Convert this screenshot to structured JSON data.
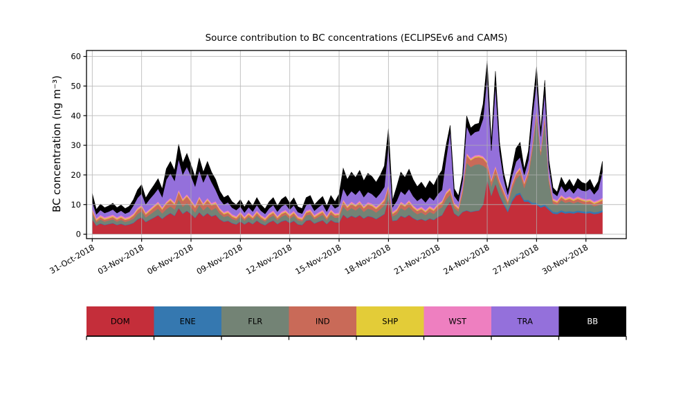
{
  "figure": {
    "title": "Source contribution to BC concentrations (ECLIPSEv6 and CAMS)",
    "ylabel": "BC concentration (ng m⁻³)"
  },
  "chart_data": {
    "type": "area",
    "stacked": true,
    "title": "Source contribution to BC concentrations (ECLIPSEv6 and CAMS)",
    "xlabel": "",
    "ylabel": "BC concentration (ng m⁻³)",
    "grid": true,
    "legend_position": "bottom-bar",
    "ylim": [
      -1.5,
      62
    ],
    "yticks": [
      0,
      10,
      20,
      30,
      40,
      50,
      60
    ],
    "x_start_label": "31-Oct-2018",
    "x_step_hours": 6,
    "xlim_days": [
      -0.35,
      32.45
    ],
    "xtick_day_offsets": [
      0,
      3,
      6,
      9,
      12,
      15,
      18,
      21,
      24,
      27,
      30
    ],
    "xtick_labels": [
      "31-Oct-2018",
      "03-Nov-2018",
      "06-Nov-2018",
      "09-Nov-2018",
      "12-Nov-2018",
      "15-Nov-2018",
      "18-Nov-2018",
      "21-Nov-2018",
      "24-Nov-2018",
      "27-Nov-2018",
      "30-Nov-2018"
    ],
    "series": [
      {
        "name": "DOM",
        "color": "#c42e3a",
        "values": [
          5.0,
          2.9,
          3.6,
          3.1,
          3.4,
          3.7,
          3.1,
          3.5,
          3.0,
          3.3,
          3.8,
          5.0,
          5.7,
          4.1,
          4.9,
          5.6,
          6.4,
          5.2,
          6.3,
          7.1,
          6.2,
          8.8,
          6.9,
          7.9,
          6.8,
          5.5,
          7.4,
          6.0,
          7.1,
          6.0,
          6.5,
          5.0,
          4.2,
          4.5,
          3.7,
          3.3,
          4.3,
          3.3,
          4.2,
          3.4,
          4.6,
          3.6,
          3.0,
          4.0,
          4.6,
          3.4,
          4.3,
          4.7,
          3.8,
          4.5,
          3.3,
          3.1,
          4.6,
          4.8,
          3.6,
          4.2,
          4.7,
          3.4,
          4.8,
          4.0,
          3.9,
          6.6,
          5.4,
          6.2,
          5.6,
          6.4,
          5.3,
          6.1,
          5.8,
          5.1,
          5.9,
          6.8,
          12.0,
          4.5,
          4.7,
          6.2,
          5.6,
          6.5,
          5.4,
          4.7,
          5.1,
          4.5,
          5.3,
          4.8,
          5.8,
          6.4,
          9.0,
          11.0,
          7.0,
          6.0,
          7.5,
          8.0,
          7.5,
          7.8,
          8.0,
          10.0,
          18.5,
          13.0,
          17.0,
          13.0,
          10.0,
          7.5,
          11.0,
          13.0,
          13.5,
          11.0,
          11.0,
          10.0,
          10.0,
          9.0,
          9.5,
          8.2,
          7.0,
          6.8,
          7.5,
          7.0,
          7.2,
          7.0,
          7.4,
          7.2,
          7.0,
          7.2,
          6.8,
          7.0,
          7.5
        ]
      },
      {
        "name": "ENE",
        "color": "#3578b0",
        "values": [
          0.15,
          0.15,
          0.15,
          0.15,
          0.15,
          0.15,
          0.15,
          0.15,
          0.15,
          0.15,
          0.15,
          0.15,
          0.15,
          0.15,
          0.15,
          0.15,
          0.15,
          0.15,
          0.15,
          0.15,
          0.15,
          0.15,
          0.15,
          0.15,
          0.15,
          0.15,
          0.15,
          0.15,
          0.15,
          0.15,
          0.15,
          0.15,
          0.15,
          0.15,
          0.15,
          0.15,
          0.15,
          0.15,
          0.15,
          0.15,
          0.15,
          0.15,
          0.15,
          0.15,
          0.15,
          0.15,
          0.15,
          0.15,
          0.15,
          0.15,
          0.15,
          0.15,
          0.15,
          0.15,
          0.15,
          0.15,
          0.15,
          0.15,
          0.15,
          0.15,
          0.15,
          0.15,
          0.15,
          0.15,
          0.15,
          0.15,
          0.15,
          0.15,
          0.15,
          0.15,
          0.15,
          0.15,
          0.15,
          0.15,
          0.15,
          0.15,
          0.15,
          0.15,
          0.15,
          0.15,
          0.15,
          0.15,
          0.15,
          0.15,
          0.15,
          0.15,
          0.15,
          0.15,
          0.15,
          0.15,
          0.15,
          0.15,
          0.15,
          0.15,
          0.15,
          0.15,
          0.15,
          0.15,
          0.15,
          0.15,
          0.6,
          0.6,
          0.6,
          0.6,
          0.6,
          0.6,
          0.6,
          0.6,
          0.6,
          0.6,
          0.6,
          0.6,
          0.6,
          0.6,
          0.6,
          0.6,
          0.6,
          0.6,
          0.6,
          0.6,
          0.6,
          0.6,
          0.6,
          0.6,
          0.6
        ]
      },
      {
        "name": "FLR",
        "color": "#738375",
        "values": [
          1.7,
          1.0,
          1.2,
          1.0,
          1.1,
          1.2,
          1.0,
          1.2,
          1.0,
          1.1,
          1.3,
          1.7,
          1.9,
          1.4,
          1.6,
          1.9,
          2.1,
          1.7,
          2.0,
          2.2,
          2.0,
          2.8,
          2.2,
          2.5,
          2.1,
          1.7,
          2.4,
          1.9,
          2.2,
          1.9,
          2.3,
          1.8,
          1.5,
          1.6,
          1.3,
          1.2,
          1.5,
          1.1,
          1.5,
          1.2,
          1.6,
          1.3,
          1.1,
          1.4,
          1.6,
          1.2,
          1.5,
          1.7,
          1.3,
          1.6,
          1.2,
          1.1,
          1.6,
          1.7,
          1.3,
          1.5,
          1.7,
          1.2,
          1.7,
          1.4,
          1.6,
          2.7,
          2.2,
          2.5,
          2.3,
          2.6,
          2.1,
          2.4,
          2.3,
          2.1,
          2.4,
          2.8,
          2.3,
          1.4,
          1.9,
          2.5,
          2.3,
          2.6,
          2.2,
          1.9,
          2.1,
          1.8,
          2.1,
          1.9,
          2.3,
          2.6,
          2.6,
          2.2,
          1.7,
          1.5,
          6.0,
          16.0,
          15.0,
          15.5,
          15.5,
          13.0,
          3.4,
          3.0,
          3.2,
          3.0,
          2.5,
          1.8,
          3.5,
          5.0,
          6.0,
          4.0,
          8.0,
          18.0,
          29.5,
          17.0,
          28.0,
          8.8,
          2.8,
          2.4,
          3.4,
          3.0,
          3.2,
          2.8,
          3.0,
          2.6,
          2.4,
          2.4,
          2.0,
          2.2,
          2.2
        ]
      },
      {
        "name": "IND",
        "color": "#c96a58",
        "values": [
          1.1,
          0.6,
          0.8,
          0.7,
          0.7,
          0.8,
          0.7,
          0.8,
          0.7,
          0.7,
          1.0,
          1.3,
          1.4,
          1.0,
          1.2,
          1.4,
          1.6,
          1.3,
          1.8,
          2.0,
          1.7,
          2.5,
          2.0,
          2.2,
          1.9,
          1.6,
          2.1,
          1.7,
          2.0,
          1.7,
          1.4,
          1.1,
          0.9,
          1.0,
          0.8,
          0.7,
          0.9,
          0.7,
          0.8,
          0.7,
          0.9,
          0.7,
          0.6,
          0.8,
          0.9,
          0.7,
          0.9,
          0.9,
          0.8,
          0.9,
          0.7,
          0.6,
          0.9,
          1.0,
          0.7,
          0.8,
          0.9,
          0.7,
          1.0,
          0.8,
          0.9,
          1.5,
          1.2,
          1.4,
          1.3,
          1.4,
          1.2,
          1.4,
          1.3,
          1.2,
          1.3,
          1.5,
          1.6,
          0.8,
          1.1,
          1.4,
          1.3,
          1.5,
          1.2,
          1.1,
          1.2,
          1.0,
          1.2,
          1.1,
          1.3,
          1.4,
          1.8,
          1.6,
          1.0,
          0.9,
          1.3,
          2.5,
          2.3,
          2.4,
          2.4,
          2.4,
          1.9,
          1.7,
          2.0,
          1.5,
          1.2,
          1.0,
          1.3,
          1.6,
          1.8,
          1.4,
          1.4,
          1.5,
          1.6,
          1.2,
          1.5,
          1.2,
          0.9,
          0.9,
          1.0,
          0.9,
          1.0,
          0.9,
          1.0,
          1.0,
          1.0,
          1.0,
          0.9,
          1.0,
          1.2
        ]
      },
      {
        "name": "SHP",
        "color": "#e3cc38",
        "values": [
          0.3,
          0.3,
          0.3,
          0.3,
          0.3,
          0.3,
          0.3,
          0.3,
          0.3,
          0.3,
          0.3,
          0.3,
          0.3,
          0.3,
          0.3,
          0.3,
          0.3,
          0.3,
          0.3,
          0.3,
          0.3,
          0.3,
          0.3,
          0.3,
          0.3,
          0.3,
          0.3,
          0.3,
          0.3,
          0.3,
          0.3,
          0.3,
          0.3,
          0.3,
          0.3,
          0.3,
          0.3,
          0.3,
          0.3,
          0.3,
          0.3,
          0.3,
          0.3,
          0.3,
          0.3,
          0.3,
          0.3,
          0.3,
          0.3,
          0.3,
          0.3,
          0.3,
          0.3,
          0.3,
          0.3,
          0.3,
          0.3,
          0.3,
          0.3,
          0.3,
          0.3,
          0.3,
          0.3,
          0.3,
          0.3,
          0.3,
          0.3,
          0.3,
          0.3,
          0.3,
          0.3,
          0.3,
          0.3,
          0.3,
          0.3,
          0.3,
          0.3,
          0.3,
          0.3,
          0.3,
          0.3,
          0.3,
          0.3,
          0.3,
          0.3,
          0.3,
          0.3,
          0.3,
          0.3,
          0.3,
          0.3,
          0.3,
          0.3,
          0.3,
          0.3,
          0.3,
          0.3,
          0.3,
          0.3,
          0.3,
          0.3,
          0.3,
          0.3,
          0.3,
          0.3,
          0.3,
          0.3,
          0.3,
          0.3,
          0.3,
          0.3,
          0.3,
          0.3,
          0.3,
          0.3,
          0.3,
          0.3,
          0.3,
          0.3,
          0.3,
          0.3,
          0.3,
          0.3,
          0.3,
          0.3
        ]
      },
      {
        "name": "WST",
        "color": "#ee7fc0",
        "values": [
          0.5,
          0.5,
          0.5,
          0.5,
          0.5,
          0.5,
          0.5,
          0.5,
          0.5,
          0.5,
          0.5,
          0.5,
          0.5,
          0.5,
          0.5,
          0.5,
          0.5,
          0.5,
          0.5,
          0.5,
          0.5,
          0.5,
          0.5,
          0.5,
          0.5,
          0.5,
          0.5,
          0.5,
          0.5,
          0.5,
          0.5,
          0.5,
          0.5,
          0.5,
          0.5,
          0.5,
          0.5,
          0.5,
          0.5,
          0.5,
          0.5,
          0.5,
          0.5,
          0.5,
          0.5,
          0.5,
          0.5,
          0.5,
          0.5,
          0.5,
          0.5,
          0.5,
          0.5,
          0.5,
          0.5,
          0.5,
          0.5,
          0.5,
          0.5,
          0.5,
          0.5,
          0.5,
          0.5,
          0.5,
          0.5,
          0.5,
          0.5,
          0.5,
          0.5,
          0.5,
          0.5,
          0.5,
          0.5,
          0.5,
          0.5,
          0.5,
          0.5,
          0.5,
          0.5,
          0.5,
          0.5,
          0.5,
          0.5,
          0.5,
          0.5,
          0.5,
          0.5,
          0.5,
          0.5,
          0.5,
          0.5,
          0.5,
          0.5,
          0.5,
          0.5,
          0.5,
          0.5,
          0.5,
          0.5,
          0.5,
          0.5,
          0.5,
          0.5,
          0.5,
          0.5,
          0.5,
          0.5,
          0.5,
          0.5,
          0.5,
          0.5,
          0.5,
          0.5,
          0.5,
          0.5,
          0.5,
          0.5,
          0.5,
          0.5,
          0.5,
          0.5,
          0.5,
          0.5,
          0.5,
          0.5
        ]
      },
      {
        "name": "TRA",
        "color": "#9470db",
        "values": [
          2.2,
          1.3,
          1.6,
          1.4,
          1.5,
          1.7,
          1.4,
          1.5,
          1.3,
          1.5,
          2.6,
          3.3,
          3.8,
          2.7,
          3.3,
          3.7,
          4.3,
          3.4,
          7.4,
          8.3,
          7.2,
          10.3,
          8.1,
          9.2,
          7.9,
          6.4,
          8.7,
          7.0,
          8.3,
          7.0,
          3.8,
          3.0,
          2.5,
          2.7,
          2.2,
          2.0,
          1.7,
          1.3,
          1.7,
          1.4,
          1.8,
          1.4,
          1.2,
          1.6,
          1.8,
          1.4,
          1.7,
          1.9,
          1.5,
          1.8,
          1.3,
          1.2,
          1.8,
          1.9,
          1.4,
          1.7,
          1.9,
          1.4,
          1.9,
          1.6,
          2.2,
          3.7,
          3.1,
          3.5,
          3.2,
          3.6,
          3.0,
          3.4,
          3.2,
          2.9,
          3.3,
          3.9,
          13.5,
          1.5,
          2.6,
          3.5,
          3.2,
          3.7,
          3.1,
          2.6,
          2.9,
          2.5,
          3.0,
          2.7,
          3.2,
          3.6,
          11.0,
          19.0,
          2.3,
          1.7,
          2.4,
          9.0,
          7.5,
          7.8,
          8.0,
          12.6,
          29.0,
          9.5,
          27.3,
          9.6,
          3.7,
          1.6,
          2.3,
          3.5,
          3.3,
          2.2,
          3.2,
          8.6,
          9.5,
          4.4,
          7.6,
          3.4,
          1.9,
          1.4,
          3.1,
          1.9,
          2.7,
          1.7,
          2.9,
          2.6,
          2.7,
          3.4,
          2.4,
          3.6,
          8.7
        ]
      },
      {
        "name": "BB",
        "color": "#000000",
        "values": [
          2.8,
          1.6,
          2.0,
          1.8,
          1.9,
          2.1,
          1.8,
          1.9,
          1.7,
          1.9,
          2.0,
          2.7,
          3.0,
          2.1,
          2.6,
          3.0,
          3.4,
          2.7,
          3.6,
          4.0,
          3.5,
          5.0,
          3.9,
          4.5,
          3.8,
          3.1,
          4.2,
          3.4,
          4.0,
          3.4,
          3.5,
          2.7,
          2.3,
          2.4,
          2.0,
          1.8,
          2.3,
          1.8,
          2.3,
          1.9,
          2.5,
          2.0,
          1.7,
          2.2,
          2.5,
          1.9,
          2.4,
          2.6,
          2.1,
          2.5,
          1.8,
          1.7,
          2.5,
          2.7,
          2.0,
          2.3,
          2.6,
          1.9,
          2.7,
          2.2,
          4.0,
          6.8,
          5.6,
          6.4,
          5.8,
          6.6,
          5.5,
          6.3,
          5.9,
          5.3,
          6.1,
          7.1,
          5.3,
          2.3,
          4.8,
          6.4,
          5.8,
          6.7,
          5.6,
          4.8,
          5.3,
          4.7,
          5.5,
          5.0,
          5.9,
          6.6,
          4.6,
          2.0,
          2.4,
          1.9,
          1.8,
          3.5,
          2.6,
          2.6,
          2.6,
          5.0,
          4.8,
          3.0,
          4.6,
          3.0,
          2.0,
          1.6,
          2.5,
          4.5,
          5.0,
          2.0,
          3.0,
          3.5,
          4.5,
          2.0,
          4.0,
          2.0,
          1.7,
          1.3,
          2.8,
          2.3,
          3.0,
          2.2,
          3.1,
          2.7,
          2.5,
          3.1,
          2.0,
          2.6,
          3.6
        ]
      }
    ]
  }
}
